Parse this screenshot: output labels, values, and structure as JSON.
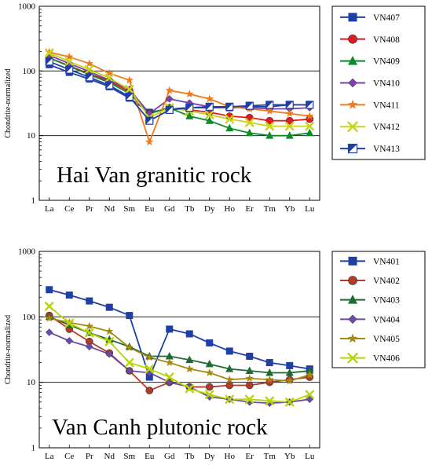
{
  "chart_data": [
    {
      "type": "line",
      "title": "Hai Van granitic rock",
      "ylabel": "Chondrite-normalized",
      "xlabel": "",
      "y_scale": "log",
      "ylim": [
        1,
        1000
      ],
      "y_ticks": [
        "1",
        "10",
        "100",
        "1000"
      ],
      "grid": "horizontal at 10 and 100",
      "legend_position": "right",
      "categories": [
        "La",
        "Ce",
        "Pr",
        "Nd",
        "Sm",
        "Eu",
        "Gd",
        "Tb",
        "Dy",
        "Ho",
        "Er",
        "Tm",
        "Yb",
        "Lu"
      ],
      "series": [
        {
          "name": "VN407",
          "color": "#1f3fa6",
          "marker": "square",
          "values": [
            125,
            95,
            75,
            57,
            38,
            23,
            26,
            27,
            27,
            27,
            28,
            28,
            30,
            30
          ]
        },
        {
          "name": "VN408",
          "color": "#e5191f",
          "marker": "circle",
          "values": [
            160,
            120,
            90,
            70,
            48,
            22,
            27,
            25,
            23,
            20,
            19,
            17,
            17,
            18
          ]
        },
        {
          "name": "VN409",
          "color": "#0d8a2a",
          "marker": "triangle",
          "values": [
            160,
            118,
            88,
            66,
            45,
            22,
            27,
            20,
            17,
            13,
            11,
            10,
            10,
            11
          ]
        },
        {
          "name": "VN410",
          "color": "#7a3fb0",
          "marker": "diamond",
          "values": [
            175,
            130,
            98,
            72,
            52,
            22,
            37,
            32,
            28,
            27,
            27,
            26,
            26,
            27
          ]
        },
        {
          "name": "VN411",
          "color": "#f07a1a",
          "marker": "star",
          "values": [
            195,
            165,
            130,
            92,
            72,
            8,
            50,
            44,
            37,
            28,
            26,
            24,
            22,
            20
          ]
        },
        {
          "name": "VN412",
          "color": "#c8d418",
          "marker": "x",
          "values": [
            190,
            140,
            105,
            78,
            52,
            19,
            27,
            24,
            21,
            18,
            16,
            14,
            14,
            14
          ]
        },
        {
          "name": "VN413",
          "color": "#1f3fa6",
          "marker": "half-square",
          "values": [
            140,
            105,
            80,
            60,
            40,
            17,
            25,
            27,
            28,
            28,
            29,
            30,
            30,
            30
          ]
        }
      ]
    },
    {
      "type": "line",
      "title": "Van Canh plutonic rock",
      "ylabel": "Chondrite-normalized",
      "xlabel": "",
      "y_scale": "log",
      "ylim": [
        1,
        1000
      ],
      "y_ticks": [
        "1",
        "10",
        "100",
        "1000"
      ],
      "grid": "horizontal at 10 and 100",
      "legend_position": "right",
      "categories": [
        "La",
        "Ce",
        "Pr",
        "Nd",
        "Sm",
        "Eu",
        "Gd",
        "Tb",
        "Dy",
        "Ho",
        "Er",
        "Tm",
        "Yb",
        "Lu"
      ],
      "series": [
        {
          "name": "VN401",
          "color": "#1f3fa6",
          "marker": "square",
          "values": [
            260,
            215,
            175,
            140,
            105,
            12,
            65,
            55,
            40,
            30,
            25,
            20,
            18,
            16
          ]
        },
        {
          "name": "VN402",
          "color": "#b43a2a",
          "marker": "circle",
          "values": [
            105,
            65,
            42,
            28,
            15,
            7.5,
            10,
            8.5,
            8.5,
            9,
            9,
            10,
            11,
            12
          ]
        },
        {
          "name": "VN403",
          "color": "#1f6a32",
          "marker": "triangle",
          "values": [
            100,
            75,
            57,
            45,
            35,
            25,
            25,
            22,
            19,
            16,
            15,
            14,
            14,
            15
          ]
        },
        {
          "name": "VN404",
          "color": "#6b4aa8",
          "marker": "diamond",
          "values": [
            58,
            43,
            35,
            27,
            15,
            14,
            10,
            8.5,
            6,
            5.5,
            5,
            4.8,
            5,
            5.5
          ]
        },
        {
          "name": "VN405",
          "color": "#a68a10",
          "marker": "star",
          "values": [
            95,
            82,
            72,
            60,
            34,
            24,
            20,
            16,
            14,
            11,
            11.5,
            11,
            10.5,
            13
          ]
        },
        {
          "name": "VN406",
          "color": "#b8d40a",
          "marker": "x",
          "values": [
            145,
            80,
            57,
            42,
            20,
            16,
            12,
            8,
            6.5,
            5.5,
            5.5,
            5.2,
            5,
            6.5
          ]
        }
      ]
    }
  ]
}
